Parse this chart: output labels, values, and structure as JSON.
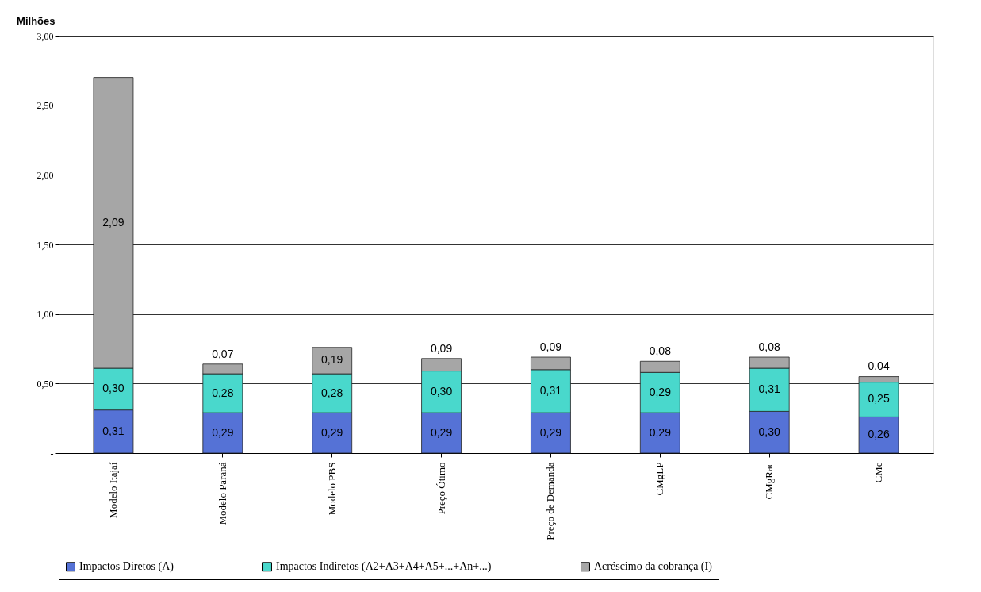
{
  "chart_data": {
    "type": "bar",
    "stacked": true,
    "ylabel": "Milhões",
    "categories": [
      "Modelo Itajaí",
      "Modelo Paraná",
      "Modelo PBS",
      "Preço Ótimo",
      "Preço de Demanda",
      "CMgLP",
      "CMgRac",
      "CMe"
    ],
    "series": [
      {
        "name": "Impactos Diretos (A)",
        "color": "#5572d6",
        "values": [
          0.31,
          0.29,
          0.29,
          0.29,
          0.29,
          0.29,
          0.3,
          0.26
        ],
        "value_labels": [
          "0,31",
          "0,29",
          "0,29",
          "0,29",
          "0,29",
          "0,29",
          "0,30",
          "0,26"
        ]
      },
      {
        "name": "Impactos Indiretos (A2+A3+A4+A5+...+An+...)",
        "color": "#49d8cc",
        "values": [
          0.3,
          0.28,
          0.28,
          0.3,
          0.31,
          0.29,
          0.31,
          0.25
        ],
        "value_labels": [
          "0,30",
          "0,28",
          "0,28",
          "0,30",
          "0,31",
          "0,29",
          "0,31",
          "0,25"
        ]
      },
      {
        "name": "Acréscimo da cobrança (I)",
        "color": "#a6a6a6",
        "values": [
          2.09,
          0.07,
          0.19,
          0.09,
          0.09,
          0.08,
          0.08,
          0.04
        ],
        "value_labels": [
          "2,09",
          "0,07",
          "0,19",
          "0,09",
          "0,09",
          "0,08",
          "0,08",
          "0,04"
        ]
      }
    ],
    "ylim": [
      0,
      3
    ],
    "yticks": [
      {
        "value": 0,
        "label": "-"
      },
      {
        "value": 0.5,
        "label": "0,50"
      },
      {
        "value": 1,
        "label": "1,00"
      },
      {
        "value": 1.5,
        "label": "1,50"
      },
      {
        "value": 2,
        "label": "2,00"
      },
      {
        "value": 2.5,
        "label": "2,50"
      },
      {
        "value": 3,
        "label": "3,00"
      }
    ],
    "grid": "y",
    "legend": "bottom"
  }
}
